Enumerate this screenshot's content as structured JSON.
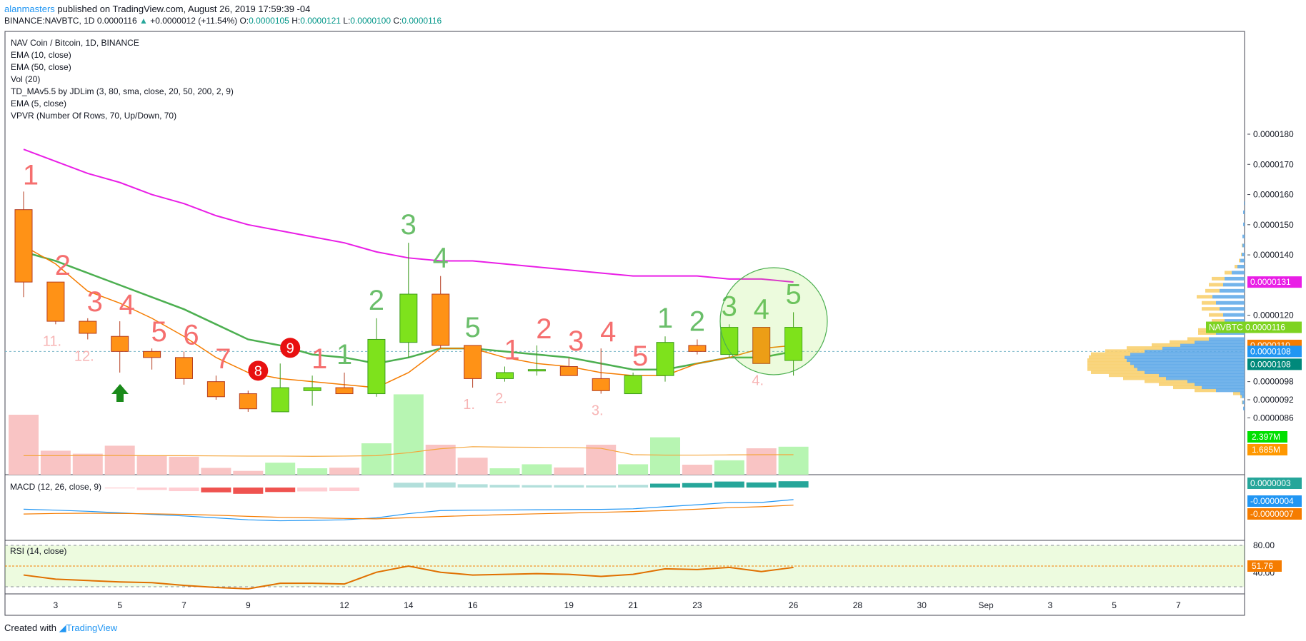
{
  "header": {
    "user": "alanmasters",
    "published": " published on TradingView.com, August 26, 2019 17:59:39 -04",
    "symbol": "BINANCE:NAVBTC, 1D",
    "last": "0.0000116",
    "change_arrow": "▲",
    "change": "+0.0000012 (+11.54%)",
    "o_label": "O:",
    "o": "0.0000105",
    "h_label": "H:",
    "h": "0.0000121",
    "l_label": "L:",
    "l": "0.0000100",
    "c_label": "C:",
    "c": "0.0000116"
  },
  "indicators": [
    "NAV Coin / Bitcoin, 1D, BINANCE",
    "EMA (10, close)",
    "EMA (50, close)",
    "Vol (20)",
    "TD_MAv5.5 by JDLim (3, 80, sma, close, 20, 50, 200, 2, 9)",
    "EMA (5, close)",
    "VPVR (Number Of Rows, 70, Up/Down, 70)"
  ],
  "macd_label": "MACD (12, 26, close, 9)",
  "rsi_label": "RSI (14, close)",
  "footer": {
    "created": "Created with",
    "brand": "TradingView"
  },
  "chart_data": {
    "type": "candlestick",
    "candles": [
      {
        "day": "Aug 2",
        "o": 1.55e-05,
        "h": 1.61e-05,
        "l": 1.26e-05,
        "c": 1.31e-05
      },
      {
        "day": "Aug 3",
        "o": 1.31e-05,
        "h": 1.31e-05,
        "l": 1.17e-05,
        "c": 1.18e-05
      },
      {
        "day": "Aug 4",
        "o": 1.18e-05,
        "h": 1.19e-05,
        "l": 1.12e-05,
        "c": 1.14e-05
      },
      {
        "day": "Aug 5",
        "o": 1.13e-05,
        "h": 1.18e-05,
        "l": 1.01e-05,
        "c": 1.08e-05
      },
      {
        "day": "Aug 6",
        "o": 1.08e-05,
        "h": 1.09e-05,
        "l": 1.02e-05,
        "c": 1.06e-05
      },
      {
        "day": "Aug 7",
        "o": 1.06e-05,
        "h": 1.08e-05,
        "l": 9.7e-06,
        "c": 9.9e-06
      },
      {
        "day": "Aug 8",
        "o": 9.8e-06,
        "h": 1e-05,
        "l": 9.2e-06,
        "c": 9.3e-06
      },
      {
        "day": "Aug 9",
        "o": 9.4e-06,
        "h": 9.5e-06,
        "l": 8.8e-06,
        "c": 8.9e-06
      },
      {
        "day": "Aug 10",
        "o": 8.8e-06,
        "h": 1.04e-05,
        "l": 8.8e-06,
        "c": 9.6e-06
      },
      {
        "day": "Aug 11",
        "o": 9.5e-06,
        "h": 1e-05,
        "l": 9e-06,
        "c": 9.6e-06
      },
      {
        "day": "Aug 12",
        "o": 9.6e-06,
        "h": 1.01e-05,
        "l": 9.4e-06,
        "c": 9.4e-06
      },
      {
        "day": "Aug 13",
        "o": 9.4e-06,
        "h": 1.19e-05,
        "l": 9.3e-06,
        "c": 1.12e-05
      },
      {
        "day": "Aug 14",
        "o": 1.11e-05,
        "h": 1.44e-05,
        "l": 1.06e-05,
        "c": 1.27e-05
      },
      {
        "day": "Aug 15",
        "o": 1.27e-05,
        "h": 1.33e-05,
        "l": 1.09e-05,
        "c": 1.1e-05
      },
      {
        "day": "Aug 16",
        "o": 1.1e-05,
        "h": 1.1e-05,
        "l": 9.6e-06,
        "c": 9.9e-06
      },
      {
        "day": "Aug 17",
        "o": 9.9e-06,
        "h": 1.03e-05,
        "l": 9.8e-06,
        "c": 1.01e-05
      },
      {
        "day": "Aug 18",
        "o": 1.02e-05,
        "h": 1.1e-05,
        "l": 1e-05,
        "c": 1.02e-05
      },
      {
        "day": "Aug 19",
        "o": 1.03e-05,
        "h": 1.06e-05,
        "l": 1e-05,
        "c": 1e-05
      },
      {
        "day": "Aug 20",
        "o": 9.9e-06,
        "h": 1.09e-05,
        "l": 9.4e-06,
        "c": 9.5e-06
      },
      {
        "day": "Aug 21",
        "o": 9.4e-06,
        "h": 1.01e-05,
        "l": 9.4e-06,
        "c": 1e-05
      },
      {
        "day": "Aug 22",
        "o": 1e-05,
        "h": 1.13e-05,
        "l": 9.8e-06,
        "c": 1.11e-05
      },
      {
        "day": "Aug 23",
        "o": 1.1e-05,
        "h": 1.12e-05,
        "l": 1.07e-05,
        "c": 1.08e-05
      },
      {
        "day": "Aug 24",
        "o": 1.07e-05,
        "h": 1.17e-05,
        "l": 1.06e-05,
        "c": 1.16e-05
      },
      {
        "day": "Aug 25",
        "o": 1.16e-05,
        "h": 1.16e-05,
        "l": 1.04e-05,
        "c": 1.04e-05
      },
      {
        "day": "Aug 26",
        "o": 1.05e-05,
        "h": 1.21e-05,
        "l": 1e-05,
        "c": 1.16e-05
      }
    ],
    "ema10": [
      1.41e-05,
      1.38e-05,
      1.34e-05,
      1.3e-05,
      1.26e-05,
      1.22e-05,
      1.17e-05,
      1.12e-05,
      1.1e-05,
      1.07e-05,
      1.06e-05,
      1.04e-05,
      1.06e-05,
      1.09e-05,
      1.09e-05,
      1.08e-05,
      1.07e-05,
      1.06e-05,
      1.04e-05,
      1.02e-05,
      1.02e-05,
      1.04e-05,
      1.06e-05,
      1.06e-05,
      1.08e-05
    ],
    "ema50": [
      1.75e-05,
      1.71e-05,
      1.67e-05,
      1.64e-05,
      1.6e-05,
      1.57e-05,
      1.53e-05,
      1.5e-05,
      1.48e-05,
      1.46e-05,
      1.44e-05,
      1.41e-05,
      1.39e-05,
      1.38e-05,
      1.38e-05,
      1.37e-05,
      1.36e-05,
      1.35e-05,
      1.34e-05,
      1.33e-05,
      1.33e-05,
      1.33e-05,
      1.32e-05,
      1.32e-05,
      1.31e-05
    ],
    "ema5": [
      1.43e-05,
      1.37e-05,
      1.28e-05,
      1.24e-05,
      1.19e-05,
      1.13e-05,
      1.06e-05,
      1.01e-05,
      9.9e-06,
      9.8e-06,
      9.7e-06,
      9.6e-06,
      1.01e-05,
      1.09e-05,
      1.09e-05,
      1.06e-05,
      1.04e-05,
      1.03e-05,
      1.01e-05,
      1e-05,
      1e-05,
      1.04e-05,
      1.06e-05,
      1.09e-05,
      1.1e-05
    ],
    "volume": [
      0.3,
      0.12,
      0.105,
      0.145,
      0.095,
      0.09,
      0.034,
      0.019,
      0.06,
      0.032,
      0.035,
      0.157,
      0.402,
      0.15,
      0.085,
      0.032,
      0.052,
      0.036,
      0.15,
      0.052,
      0.187,
      0.05,
      0.072,
      0.132,
      0.14
    ],
    "volume_ma": [
      0.095,
      0.095,
      0.096,
      0.096,
      0.095,
      0.095,
      0.094,
      0.093,
      0.093,
      0.092,
      0.093,
      0.095,
      0.11,
      0.13,
      0.14,
      0.138,
      0.137,
      0.136,
      0.132,
      0.1,
      0.098,
      0.098,
      0.099,
      0.1,
      0.1
    ],
    "macd_hist": [
      0,
      0,
      0,
      -0.3,
      -0.8,
      -1.2,
      -1.6,
      -2.1,
      -1.5,
      -1.3,
      -1.2,
      0,
      1.6,
      1.7,
      1.1,
      0.9,
      0.8,
      0.8,
      0.7,
      0.9,
      1.3,
      1.5,
      2.0,
      1.7,
      2.1
    ],
    "macd_line": [
      -0.5,
      -1.0,
      -1.6,
      -2.4,
      -3.2,
      -4.0,
      -5.0,
      -6.0,
      -6.5,
      -6.3,
      -6.0,
      -5.0,
      -2.8,
      -1.2,
      -1.0,
      -0.9,
      -0.8,
      -0.7,
      -0.6,
      -0.3,
      0.8,
      1.8,
      3.0,
      3.0,
      4.5
    ],
    "signal_line": [
      -3.0,
      -2.7,
      -2.6,
      -2.7,
      -2.9,
      -3.2,
      -3.6,
      -4.2,
      -4.7,
      -5.0,
      -5.3,
      -5.5,
      -4.9,
      -4.3,
      -3.8,
      -3.3,
      -2.9,
      -2.5,
      -2.1,
      -1.7,
      -1.2,
      -0.5,
      0.3,
      0.8,
      1.6
    ],
    "rsi": [
      37,
      31,
      29,
      27,
      26,
      22,
      19,
      17,
      25,
      25,
      24,
      41,
      50,
      41,
      37,
      38,
      39,
      38,
      35,
      38,
      46,
      45,
      48,
      42,
      48
    ],
    "td_labels": [
      {
        "day": 0,
        "text": "1",
        "color": "#f56f6f"
      },
      {
        "day": 1,
        "text": "2",
        "color": "#f56f6f"
      },
      {
        "day": 2,
        "text": "3",
        "color": "#f56f6f"
      },
      {
        "day": 3,
        "text": "4",
        "color": "#f56f6f"
      },
      {
        "day": 4,
        "text": "5",
        "color": "#f56f6f"
      },
      {
        "day": 5,
        "text": "6",
        "color": "#f56f6f"
      },
      {
        "day": 6,
        "text": "7",
        "color": "#f56f6f"
      },
      {
        "day": 9,
        "text": "1",
        "color": "#f56f6f"
      },
      {
        "day": 10,
        "text": "1",
        "color": "#6abe6a"
      },
      {
        "day": 11,
        "text": "2",
        "color": "#6abe6a"
      },
      {
        "day": 12,
        "text": "3",
        "color": "#6abe6a"
      },
      {
        "day": 13,
        "text": "4",
        "color": "#6abe6a"
      },
      {
        "day": 14,
        "text": "5",
        "color": "#6abe6a"
      },
      {
        "day": 15,
        "text": "1",
        "color": "#f56f6f"
      },
      {
        "day": 16,
        "text": "2",
        "color": "#f56f6f"
      },
      {
        "day": 17,
        "text": "3",
        "color": "#f56f6f"
      },
      {
        "day": 18,
        "text": "4",
        "color": "#f56f6f"
      },
      {
        "day": 19,
        "text": "5",
        "color": "#f56f6f"
      },
      {
        "day": 20,
        "text": "1",
        "color": "#6abe6a"
      },
      {
        "day": 21,
        "text": "2",
        "color": "#6abe6a"
      },
      {
        "day": 22,
        "text": "3",
        "color": "#6abe6a"
      },
      {
        "day": 23,
        "text": "4",
        "color": "#6abe6a"
      },
      {
        "day": 24,
        "text": "5",
        "color": "#6abe6a"
      }
    ],
    "countdown_labels": [
      {
        "day": 1,
        "text": "11."
      },
      {
        "day": 2,
        "text": "12."
      },
      {
        "day": 14,
        "text": "1."
      },
      {
        "day": 15,
        "text": "2."
      },
      {
        "day": 18,
        "text": "3."
      },
      {
        "day": 23,
        "text": "4."
      }
    ],
    "setup_badges": [
      {
        "day": 7,
        "text": "8"
      },
      {
        "day": 8,
        "text": "9"
      }
    ],
    "x_ticks": [
      "3",
      "5",
      "7",
      "9",
      "12",
      "14",
      "16",
      "19",
      "21",
      "23",
      "26",
      "28",
      "30",
      "Sep",
      "3",
      "5",
      "7"
    ],
    "price_ticks": [
      "0.0000180",
      "0.0000170",
      "0.0000160",
      "0.0000150",
      "0.0000140",
      "0.0000120",
      "0.0000098",
      "0.0000092",
      "0.0000086"
    ],
    "price_badges": [
      {
        "text": "0.0000131",
        "color": "#e91ee6"
      },
      {
        "text": "NAVBTC  0.0000116",
        "color": "#7ed321"
      },
      {
        "text": "0.0000110",
        "color": "#f57c00"
      },
      {
        "text": "0.0000108",
        "color": "#2196f3"
      },
      {
        "text": "0.0000108",
        "color": "#00897b"
      }
    ],
    "volume_badges": [
      {
        "text": "2.397M",
        "color": "#00e000"
      },
      {
        "text": "1.685M",
        "color": "#ff9800"
      }
    ],
    "macd_badges": [
      {
        "text": "0.0000003",
        "color": "#26a69a"
      },
      {
        "text": "-0.0000004",
        "color": "#2196f3"
      },
      {
        "text": "-0.0000007",
        "color": "#f57c00"
      }
    ],
    "rsi_ticks": [
      "80.00",
      "40.00"
    ],
    "rsi_badge": {
      "text": "51.76",
      "color": "#f57c00"
    },
    "vpvr": [
      {
        "price": 8.9e-06,
        "up": 2,
        "down": 0
      },
      {
        "price": 9.1e-06,
        "up": 3,
        "down": 1
      },
      {
        "price": 9.3e-06,
        "up": 4,
        "down": 2
      },
      {
        "price": 9.4e-06,
        "up": 6,
        "down": 10
      },
      {
        "price": 9.5e-06,
        "up": 40,
        "down": 30
      },
      {
        "price": 9.6e-06,
        "up": 60,
        "down": 40
      },
      {
        "price": 9.7e-06,
        "up": 70,
        "down": 50
      },
      {
        "price": 9.8e-06,
        "up": 80,
        "down": 60
      },
      {
        "price": 9.9e-06,
        "up": 110,
        "down": 60
      },
      {
        "price": 1e-05,
        "up": 120,
        "down": 70
      },
      {
        "price": 1.01e-05,
        "up": 140,
        "down": 75
      },
      {
        "price": 1.02e-05,
        "up": 150,
        "down": 70
      },
      {
        "price": 1.03e-05,
        "up": 155,
        "down": 65
      },
      {
        "price": 1.04e-05,
        "up": 160,
        "down": 60
      },
      {
        "price": 1.05e-05,
        "up": 165,
        "down": 55
      },
      {
        "price": 1.06e-05,
        "up": 168,
        "down": 50
      },
      {
        "price": 1.07e-05,
        "up": 160,
        "down": 55
      },
      {
        "price": 1.08e-05,
        "up": 140,
        "down": 55
      },
      {
        "price": 1.09e-05,
        "up": 115,
        "down": 50
      },
      {
        "price": 1.1e-05,
        "up": 90,
        "down": 40
      },
      {
        "price": 1.11e-05,
        "up": 70,
        "down": 35
      },
      {
        "price": 1.12e-05,
        "up": 50,
        "down": 30
      },
      {
        "price": 1.14e-05,
        "up": 40,
        "down": 25
      },
      {
        "price": 1.15e-05,
        "up": 35,
        "down": 30
      },
      {
        "price": 1.17e-05,
        "up": 30,
        "down": 20
      },
      {
        "price": 1.18e-05,
        "up": 28,
        "down": 18
      },
      {
        "price": 1.2e-05,
        "up": 30,
        "down": 20
      },
      {
        "price": 1.22e-05,
        "up": 35,
        "down": 25
      },
      {
        "price": 1.24e-05,
        "up": 40,
        "down": 20
      },
      {
        "price": 1.26e-05,
        "up": 45,
        "down": 22
      },
      {
        "price": 1.28e-05,
        "up": 35,
        "down": 20
      },
      {
        "price": 1.3e-05,
        "up": 30,
        "down": 20
      },
      {
        "price": 1.32e-05,
        "up": 28,
        "down": 18
      },
      {
        "price": 1.34e-05,
        "up": 18,
        "down": 10
      },
      {
        "price": 1.36e-05,
        "up": 10,
        "down": 4
      },
      {
        "price": 1.38e-05,
        "up": 6,
        "down": 2
      },
      {
        "price": 1.4e-05,
        "up": 4,
        "down": 1
      },
      {
        "price": 1.43e-05,
        "up": 3,
        "down": 1
      },
      {
        "price": 1.46e-05,
        "up": 3,
        "down": 0
      },
      {
        "price": 1.5e-05,
        "up": 2,
        "down": 0
      },
      {
        "price": 1.54e-05,
        "up": 2,
        "down": 0
      },
      {
        "price": 1.57e-05,
        "up": 1,
        "down": 0
      }
    ],
    "colors": {
      "up_candle": "#7ee21c",
      "down_candle": "#ff9216",
      "candle_border": "#b53e21",
      "ema10": "#4caf50",
      "ema50": "#e91ee6",
      "ema5": "#f57c00",
      "vol_up": "#b7f5b2",
      "vol_down": "#f9c4c4",
      "vpvr_up": "#5aa7e8",
      "vpvr_down": "#f8d070"
    }
  }
}
